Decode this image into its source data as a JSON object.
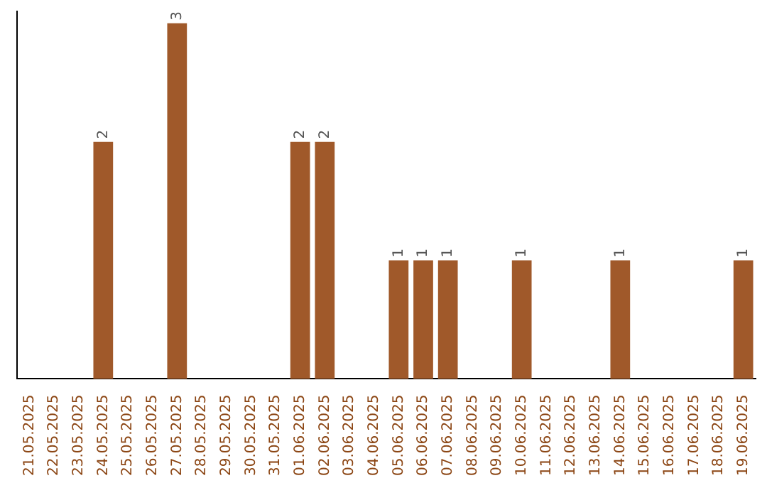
{
  "chart_data": {
    "type": "bar",
    "categories": [
      "21.05.2025",
      "22.05.2025",
      "23.05.2025",
      "24.05.2025",
      "25.05.2025",
      "26.05.2025",
      "27.05.2025",
      "28.05.2025",
      "29.05.2025",
      "30.05.2025",
      "31.05.2025",
      "01.06.2025",
      "02.06.2025",
      "03.06.2025",
      "04.06.2025",
      "05.06.2025",
      "06.06.2025",
      "07.06.2025",
      "08.06.2025",
      "09.06.2025",
      "10.06.2025",
      "11.06.2025",
      "12.06.2025",
      "13.06.2025",
      "14.06.2025",
      "15.06.2025",
      "16.06.2025",
      "17.06.2025",
      "18.06.2025",
      "19.06.2025"
    ],
    "values": [
      0,
      0,
      0,
      2,
      0,
      0,
      3,
      0,
      0,
      0,
      0,
      2,
      2,
      0,
      0,
      1,
      1,
      1,
      0,
      0,
      1,
      0,
      0,
      0,
      1,
      0,
      0,
      0,
      0,
      1
    ],
    "value_labels": [
      null,
      null,
      null,
      "2",
      null,
      null,
      "3",
      null,
      null,
      null,
      null,
      "2",
      "2",
      null,
      null,
      "1",
      "1",
      "1",
      null,
      null,
      "1",
      null,
      null,
      null,
      "1",
      null,
      null,
      null,
      null,
      "1"
    ],
    "color": "#a0592a",
    "ylim": [
      0,
      3.1
    ],
    "tick_labels": "x",
    "grid": false,
    "legend": false
  }
}
